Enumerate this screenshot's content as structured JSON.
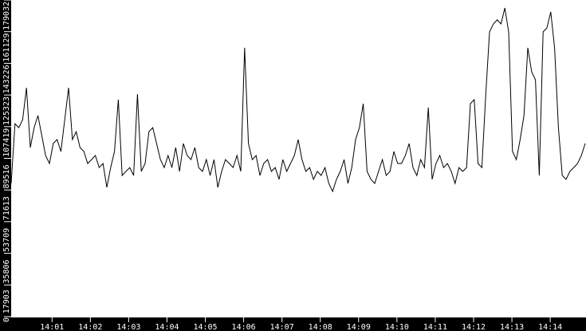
{
  "chart_data": {
    "type": "line",
    "title": "",
    "xlabel": "",
    "ylabel": "",
    "xlim": [
      "13:59:56",
      "14:14:56"
    ],
    "ylim": [
      0,
      179032
    ],
    "grid": false,
    "legend": "none",
    "colors": {
      "background": "#000000",
      "plot_area": "#ffffff",
      "line": "#000000",
      "axis_text": "#ffffff"
    },
    "x_ticks": [
      "14:01",
      "14:02",
      "14:03",
      "14:04",
      "14:05",
      "14:06",
      "14:07",
      "14:08",
      "14:09",
      "14:10",
      "14:11",
      "14:12",
      "14:13",
      "14:14"
    ],
    "y_ticks": [
      "0",
      "17903",
      "35806",
      "53709",
      "71613",
      "89516",
      "107419",
      "125323",
      "143226",
      "161129",
      "179032"
    ],
    "series": [
      {
        "values": [
          75300,
          109100,
          106900,
          111400,
          129400,
          95600,
          106900,
          113700,
          102400,
          91100,
          86600,
          97900,
          100100,
          93400,
          111400,
          129400,
          100100,
          104600,
          95600,
          93400,
          86600,
          88800,
          91100,
          84300,
          86600,
          73100,
          84300,
          93400,
          122700,
          79800,
          82100,
          84300,
          79800,
          125800,
          82100,
          86600,
          104600,
          106900,
          97900,
          88800,
          84300,
          91100,
          84300,
          95600,
          82100,
          97900,
          91100,
          88800,
          95600,
          84300,
          82100,
          88800,
          79800,
          88800,
          73100,
          82100,
          88800,
          86600,
          84300,
          91100,
          82100,
          152000,
          97900,
          88800,
          91100,
          79800,
          86600,
          88800,
          82100,
          84300,
          77600,
          88800,
          82100,
          86600,
          91100,
          100100,
          88800,
          82100,
          84300,
          77600,
          82100,
          79800,
          84300,
          75300,
          70800,
          77600,
          82100,
          88800,
          75300,
          84300,
          100100,
          106900,
          120400,
          82100,
          77600,
          75300,
          82100,
          88800,
          79800,
          82100,
          93400,
          86600,
          86600,
          91100,
          97900,
          84300,
          79800,
          88800,
          84300,
          118200,
          77600,
          86600,
          91100,
          84300,
          86600,
          82100,
          75300,
          84300,
          82100,
          84300,
          120400,
          122700,
          86600,
          84300,
          124900,
          161000,
          165500,
          167800,
          165500,
          174500,
          161000,
          93400,
          88800,
          100100,
          113700,
          152000,
          138500,
          133900,
          79800,
          161000,
          163300,
          172300,
          152000,
          106900,
          79800,
          77600,
          82100,
          84300,
          86600,
          91100,
          97900
        ]
      }
    ]
  }
}
